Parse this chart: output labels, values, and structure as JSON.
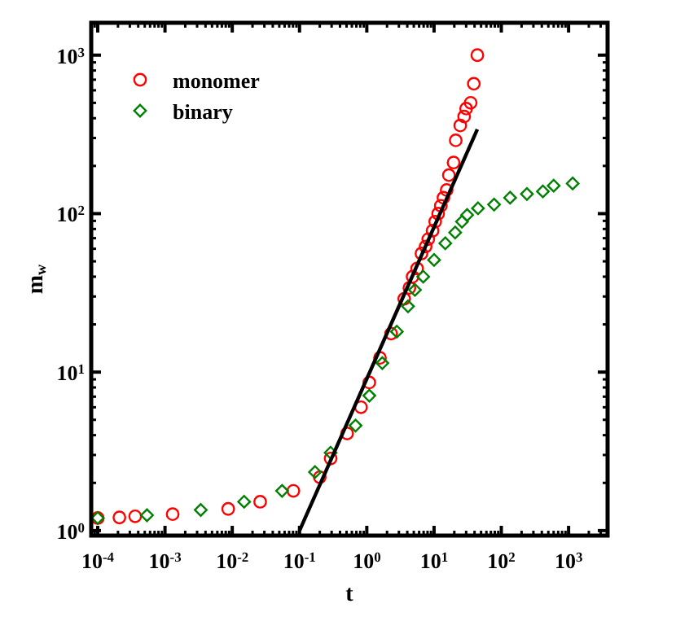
{
  "chart_data": {
    "type": "scatter",
    "xlabel": "t",
    "ylabel": "m$_{w}$",
    "log": "xy",
    "legend": "top left",
    "grid": false,
    "xlim": [
      8e-05,
      3800
    ],
    "ylim": [
      0.93,
      1600
    ],
    "xticks": [
      {
        "value": 0.0001,
        "label": "10$^{-4}$"
      },
      {
        "value": 0.001,
        "label": "10$^{-3}$"
      },
      {
        "value": 0.01,
        "label": "10$^{-2}$"
      },
      {
        "value": 0.1,
        "label": "10$^{-1}$"
      },
      {
        "value": 1,
        "label": "10$^{0}$"
      },
      {
        "value": 10,
        "label": "10$^{1}$"
      },
      {
        "value": 100,
        "label": "10$^{2}$"
      },
      {
        "value": 1000,
        "label": "10$^{3}$"
      }
    ],
    "yticks": [
      {
        "value": 1,
        "label": "10$^{0}$"
      },
      {
        "value": 10,
        "label": "10$^{1}$"
      },
      {
        "value": 100,
        "label": "10$^{2}$"
      },
      {
        "value": 1000,
        "label": "10$^{3}$"
      }
    ],
    "series": [
      {
        "name": "monomer",
        "color": "#ff0000",
        "marker": "circle",
        "x": [
          0.0001,
          0.00021,
          0.00036,
          0.0013,
          0.0087,
          0.026,
          0.081,
          0.2,
          0.29,
          0.51,
          0.82,
          1.09,
          1.57,
          2.3,
          3.6,
          4.3,
          4.8,
          5.6,
          6.5,
          7.5,
          8.2,
          9.5,
          10.4,
          11.5,
          12.6,
          13.8,
          15.4,
          16.6,
          19.5,
          21,
          24.5,
          28,
          30,
          35,
          39,
          44
        ],
        "values": [
          1.2,
          1.21,
          1.23,
          1.27,
          1.37,
          1.52,
          1.78,
          2.17,
          2.85,
          4.1,
          6.0,
          8.6,
          12.3,
          17.5,
          29,
          34,
          40,
          45,
          56,
          62,
          69,
          78,
          89,
          100,
          112,
          126,
          141,
          175,
          210,
          290,
          360,
          410,
          460,
          500,
          660,
          1000
        ]
      },
      {
        "name": "binary",
        "color": "#008000",
        "marker": "diamond",
        "x": [
          0.0001,
          0.00054,
          0.0034,
          0.015,
          0.055,
          0.17,
          0.29,
          0.68,
          1.09,
          1.7,
          2.8,
          4.1,
          5.2,
          6.9,
          10,
          14.7,
          20.6,
          26,
          31,
          45,
          78,
          135,
          240,
          415,
          600,
          1150
        ],
        "values": [
          1.2,
          1.25,
          1.35,
          1.52,
          1.78,
          2.34,
          3.1,
          4.6,
          7.1,
          11.4,
          18,
          26,
          33,
          40,
          51,
          65,
          76,
          89,
          98,
          108,
          114,
          126,
          133,
          138,
          150,
          155
        ]
      },
      {
        "type": "line",
        "color": "#000000",
        "marker": "none",
        "x": [
          0.1,
          44
        ],
        "values": [
          1,
          340
        ]
      }
    ]
  }
}
